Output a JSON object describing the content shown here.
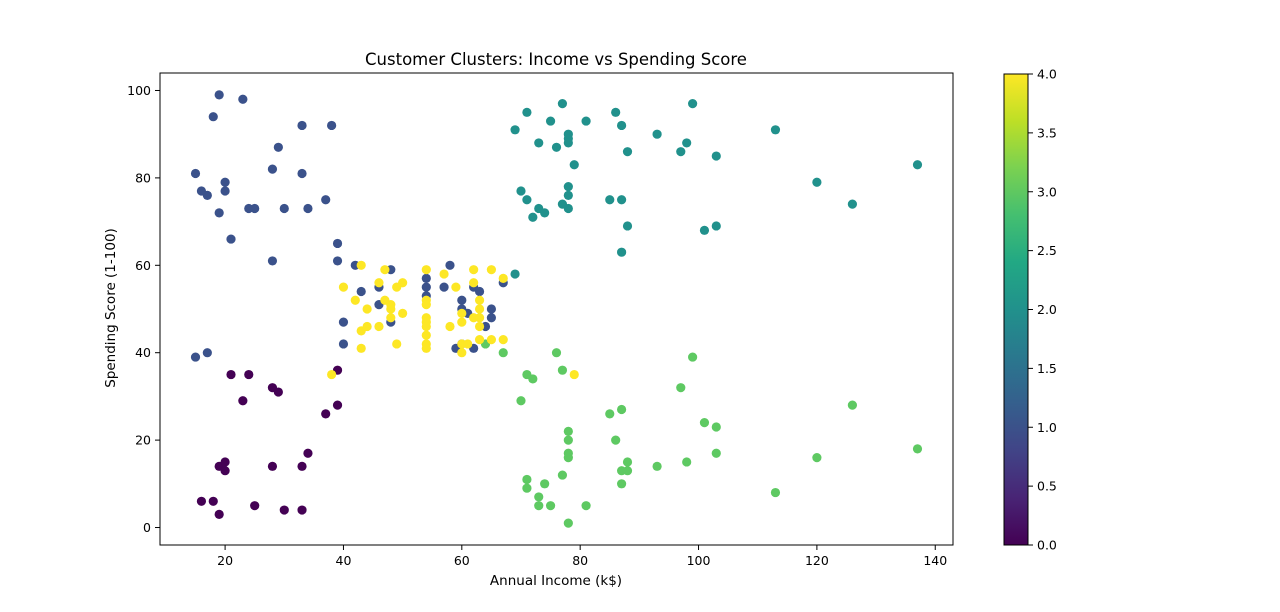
{
  "chart_data": {
    "type": "scatter",
    "title": "Customer Clusters: Income vs Spending Score",
    "xlabel": "Annual Income (k$)",
    "ylabel": "Spending Score (1-100)",
    "xlim": [
      9,
      143
    ],
    "ylim": [
      -4,
      104
    ],
    "xticks": [
      20,
      40,
      60,
      80,
      100,
      120,
      140
    ],
    "yticks": [
      0,
      20,
      40,
      60,
      80,
      100
    ],
    "grid": false,
    "colormap": "viridis",
    "colorbar": {
      "range": [
        0,
        4
      ],
      "ticks": [
        "0.0",
        "0.5",
        "1.0",
        "1.5",
        "2.0",
        "2.5",
        "3.0",
        "3.5",
        "4.0"
      ],
      "colors": [
        "#440154",
        "#482475",
        "#414487",
        "#355f8d",
        "#2a788e",
        "#21918c",
        "#22a884",
        "#44bf70",
        "#7ad151",
        "#bddf26",
        "#fde725"
      ]
    },
    "cluster_colors": {
      "0": "#440154",
      "1": "#3b528b",
      "2": "#21918c",
      "3": "#5ec962",
      "4": "#fde725"
    },
    "points": [
      {
        "x": 16,
        "y": 6,
        "c": 0
      },
      {
        "x": 18,
        "y": 6,
        "c": 0
      },
      {
        "x": 19,
        "y": 3,
        "c": 0
      },
      {
        "x": 19,
        "y": 14,
        "c": 0
      },
      {
        "x": 20,
        "y": 13,
        "c": 0
      },
      {
        "x": 20,
        "y": 15,
        "c": 0
      },
      {
        "x": 21,
        "y": 35,
        "c": 0
      },
      {
        "x": 23,
        "y": 29,
        "c": 0
      },
      {
        "x": 24,
        "y": 35,
        "c": 0
      },
      {
        "x": 25,
        "y": 5,
        "c": 0
      },
      {
        "x": 28,
        "y": 14,
        "c": 0
      },
      {
        "x": 28,
        "y": 32,
        "c": 0
      },
      {
        "x": 29,
        "y": 31,
        "c": 0
      },
      {
        "x": 30,
        "y": 4,
        "c": 0
      },
      {
        "x": 33,
        "y": 4,
        "c": 0
      },
      {
        "x": 33,
        "y": 14,
        "c": 0
      },
      {
        "x": 34,
        "y": 17,
        "c": 0
      },
      {
        "x": 37,
        "y": 26,
        "c": 0
      },
      {
        "x": 39,
        "y": 28,
        "c": 0
      },
      {
        "x": 39,
        "y": 36,
        "c": 0
      },
      {
        "x": 15,
        "y": 39,
        "c": 1
      },
      {
        "x": 15,
        "y": 81,
        "c": 1
      },
      {
        "x": 16,
        "y": 77,
        "c": 1
      },
      {
        "x": 17,
        "y": 40,
        "c": 1
      },
      {
        "x": 17,
        "y": 76,
        "c": 1
      },
      {
        "x": 18,
        "y": 94,
        "c": 1
      },
      {
        "x": 19,
        "y": 72,
        "c": 1
      },
      {
        "x": 19,
        "y": 99,
        "c": 1
      },
      {
        "x": 20,
        "y": 77,
        "c": 1
      },
      {
        "x": 20,
        "y": 79,
        "c": 1
      },
      {
        "x": 21,
        "y": 66,
        "c": 1
      },
      {
        "x": 23,
        "y": 98,
        "c": 1
      },
      {
        "x": 24,
        "y": 73,
        "c": 1
      },
      {
        "x": 25,
        "y": 73,
        "c": 1
      },
      {
        "x": 28,
        "y": 61,
        "c": 1
      },
      {
        "x": 28,
        "y": 82,
        "c": 1
      },
      {
        "x": 29,
        "y": 87,
        "c": 1
      },
      {
        "x": 30,
        "y": 73,
        "c": 1
      },
      {
        "x": 33,
        "y": 81,
        "c": 1
      },
      {
        "x": 33,
        "y": 92,
        "c": 1
      },
      {
        "x": 34,
        "y": 73,
        "c": 1
      },
      {
        "x": 37,
        "y": 75,
        "c": 1
      },
      {
        "x": 38,
        "y": 92,
        "c": 1
      },
      {
        "x": 39,
        "y": 61,
        "c": 1
      },
      {
        "x": 39,
        "y": 65,
        "c": 1
      },
      {
        "x": 40,
        "y": 47,
        "c": 1
      },
      {
        "x": 40,
        "y": 42,
        "c": 1
      },
      {
        "x": 42,
        "y": 60,
        "c": 1
      },
      {
        "x": 43,
        "y": 54,
        "c": 1
      },
      {
        "x": 46,
        "y": 51,
        "c": 1
      },
      {
        "x": 46,
        "y": 55,
        "c": 1
      },
      {
        "x": 48,
        "y": 47,
        "c": 1
      },
      {
        "x": 48,
        "y": 59,
        "c": 1
      },
      {
        "x": 54,
        "y": 57,
        "c": 1
      },
      {
        "x": 54,
        "y": 55,
        "c": 1
      },
      {
        "x": 54,
        "y": 53,
        "c": 1
      },
      {
        "x": 57,
        "y": 55,
        "c": 1
      },
      {
        "x": 58,
        "y": 60,
        "c": 1
      },
      {
        "x": 59,
        "y": 41,
        "c": 1
      },
      {
        "x": 60,
        "y": 52,
        "c": 1
      },
      {
        "x": 60,
        "y": 50,
        "c": 1
      },
      {
        "x": 60,
        "y": 42,
        "c": 1
      },
      {
        "x": 61,
        "y": 49,
        "c": 1
      },
      {
        "x": 62,
        "y": 55,
        "c": 1
      },
      {
        "x": 62,
        "y": 41,
        "c": 1
      },
      {
        "x": 63,
        "y": 54,
        "c": 1
      },
      {
        "x": 64,
        "y": 46,
        "c": 1
      },
      {
        "x": 65,
        "y": 50,
        "c": 1
      },
      {
        "x": 65,
        "y": 48,
        "c": 1
      },
      {
        "x": 67,
        "y": 56,
        "c": 1
      },
      {
        "x": 69,
        "y": 58,
        "c": 2
      },
      {
        "x": 69,
        "y": 91,
        "c": 2
      },
      {
        "x": 70,
        "y": 77,
        "c": 2
      },
      {
        "x": 71,
        "y": 95,
        "c": 2
      },
      {
        "x": 71,
        "y": 75,
        "c": 2
      },
      {
        "x": 72,
        "y": 71,
        "c": 2
      },
      {
        "x": 73,
        "y": 88,
        "c": 2
      },
      {
        "x": 73,
        "y": 73,
        "c": 2
      },
      {
        "x": 74,
        "y": 72,
        "c": 2
      },
      {
        "x": 75,
        "y": 93,
        "c": 2
      },
      {
        "x": 76,
        "y": 87,
        "c": 2
      },
      {
        "x": 77,
        "y": 97,
        "c": 2
      },
      {
        "x": 77,
        "y": 74,
        "c": 2
      },
      {
        "x": 78,
        "y": 90,
        "c": 2
      },
      {
        "x": 78,
        "y": 89,
        "c": 2
      },
      {
        "x": 78,
        "y": 88,
        "c": 2
      },
      {
        "x": 78,
        "y": 78,
        "c": 2
      },
      {
        "x": 78,
        "y": 76,
        "c": 2
      },
      {
        "x": 78,
        "y": 73,
        "c": 2
      },
      {
        "x": 79,
        "y": 83,
        "c": 2
      },
      {
        "x": 81,
        "y": 93,
        "c": 2
      },
      {
        "x": 85,
        "y": 75,
        "c": 2
      },
      {
        "x": 86,
        "y": 95,
        "c": 2
      },
      {
        "x": 87,
        "y": 63,
        "c": 2
      },
      {
        "x": 87,
        "y": 75,
        "c": 2
      },
      {
        "x": 87,
        "y": 92,
        "c": 2
      },
      {
        "x": 88,
        "y": 86,
        "c": 2
      },
      {
        "x": 88,
        "y": 69,
        "c": 2
      },
      {
        "x": 93,
        "y": 90,
        "c": 2
      },
      {
        "x": 97,
        "y": 86,
        "c": 2
      },
      {
        "x": 98,
        "y": 88,
        "c": 2
      },
      {
        "x": 99,
        "y": 97,
        "c": 2
      },
      {
        "x": 101,
        "y": 68,
        "c": 2
      },
      {
        "x": 103,
        "y": 85,
        "c": 2
      },
      {
        "x": 103,
        "y": 69,
        "c": 2
      },
      {
        "x": 113,
        "y": 91,
        "c": 2
      },
      {
        "x": 120,
        "y": 79,
        "c": 2
      },
      {
        "x": 126,
        "y": 74,
        "c": 2
      },
      {
        "x": 137,
        "y": 83,
        "c": 2
      },
      {
        "x": 64,
        "y": 42,
        "c": 3
      },
      {
        "x": 67,
        "y": 40,
        "c": 3
      },
      {
        "x": 70,
        "y": 29,
        "c": 3
      },
      {
        "x": 71,
        "y": 35,
        "c": 3
      },
      {
        "x": 71,
        "y": 11,
        "c": 3
      },
      {
        "x": 71,
        "y": 9,
        "c": 3
      },
      {
        "x": 72,
        "y": 34,
        "c": 3
      },
      {
        "x": 73,
        "y": 5,
        "c": 3
      },
      {
        "x": 73,
        "y": 7,
        "c": 3
      },
      {
        "x": 74,
        "y": 10,
        "c": 3
      },
      {
        "x": 75,
        "y": 5,
        "c": 3
      },
      {
        "x": 76,
        "y": 40,
        "c": 3
      },
      {
        "x": 77,
        "y": 12,
        "c": 3
      },
      {
        "x": 77,
        "y": 36,
        "c": 3
      },
      {
        "x": 78,
        "y": 22,
        "c": 3
      },
      {
        "x": 78,
        "y": 20,
        "c": 3
      },
      {
        "x": 78,
        "y": 17,
        "c": 3
      },
      {
        "x": 78,
        "y": 16,
        "c": 3
      },
      {
        "x": 78,
        "y": 1,
        "c": 3
      },
      {
        "x": 81,
        "y": 5,
        "c": 3
      },
      {
        "x": 85,
        "y": 26,
        "c": 3
      },
      {
        "x": 86,
        "y": 20,
        "c": 3
      },
      {
        "x": 87,
        "y": 27,
        "c": 3
      },
      {
        "x": 87,
        "y": 13,
        "c": 3
      },
      {
        "x": 87,
        "y": 10,
        "c": 3
      },
      {
        "x": 88,
        "y": 15,
        "c": 3
      },
      {
        "x": 88,
        "y": 13,
        "c": 3
      },
      {
        "x": 93,
        "y": 14,
        "c": 3
      },
      {
        "x": 97,
        "y": 32,
        "c": 3
      },
      {
        "x": 98,
        "y": 15,
        "c": 3
      },
      {
        "x": 99,
        "y": 39,
        "c": 3
      },
      {
        "x": 101,
        "y": 24,
        "c": 3
      },
      {
        "x": 103,
        "y": 23,
        "c": 3
      },
      {
        "x": 103,
        "y": 17,
        "c": 3
      },
      {
        "x": 113,
        "y": 8,
        "c": 3
      },
      {
        "x": 120,
        "y": 16,
        "c": 3
      },
      {
        "x": 126,
        "y": 28,
        "c": 3
      },
      {
        "x": 137,
        "y": 18,
        "c": 3
      },
      {
        "x": 38,
        "y": 35,
        "c": 4
      },
      {
        "x": 40,
        "y": 55,
        "c": 4
      },
      {
        "x": 42,
        "y": 52,
        "c": 4
      },
      {
        "x": 43,
        "y": 60,
        "c": 4
      },
      {
        "x": 43,
        "y": 45,
        "c": 4
      },
      {
        "x": 43,
        "y": 41,
        "c": 4
      },
      {
        "x": 44,
        "y": 50,
        "c": 4
      },
      {
        "x": 44,
        "y": 46,
        "c": 4
      },
      {
        "x": 46,
        "y": 56,
        "c": 4
      },
      {
        "x": 46,
        "y": 46,
        "c": 4
      },
      {
        "x": 47,
        "y": 59,
        "c": 4
      },
      {
        "x": 47,
        "y": 52,
        "c": 4
      },
      {
        "x": 48,
        "y": 51,
        "c": 4
      },
      {
        "x": 48,
        "y": 50,
        "c": 4
      },
      {
        "x": 48,
        "y": 48,
        "c": 4
      },
      {
        "x": 49,
        "y": 55,
        "c": 4
      },
      {
        "x": 49,
        "y": 42,
        "c": 4
      },
      {
        "x": 50,
        "y": 56,
        "c": 4
      },
      {
        "x": 50,
        "y": 49,
        "c": 4
      },
      {
        "x": 54,
        "y": 59,
        "c": 4
      },
      {
        "x": 54,
        "y": 52,
        "c": 4
      },
      {
        "x": 54,
        "y": 51,
        "c": 4
      },
      {
        "x": 54,
        "y": 48,
        "c": 4
      },
      {
        "x": 54,
        "y": 47,
        "c": 4
      },
      {
        "x": 54,
        "y": 46,
        "c": 4
      },
      {
        "x": 54,
        "y": 44,
        "c": 4
      },
      {
        "x": 54,
        "y": 42,
        "c": 4
      },
      {
        "x": 54,
        "y": 41,
        "c": 4
      },
      {
        "x": 57,
        "y": 58,
        "c": 4
      },
      {
        "x": 58,
        "y": 46,
        "c": 4
      },
      {
        "x": 59,
        "y": 55,
        "c": 4
      },
      {
        "x": 60,
        "y": 49,
        "c": 4
      },
      {
        "x": 60,
        "y": 47,
        "c": 4
      },
      {
        "x": 60,
        "y": 42,
        "c": 4
      },
      {
        "x": 60,
        "y": 40,
        "c": 4
      },
      {
        "x": 61,
        "y": 42,
        "c": 4
      },
      {
        "x": 62,
        "y": 59,
        "c": 4
      },
      {
        "x": 62,
        "y": 56,
        "c": 4
      },
      {
        "x": 62,
        "y": 48,
        "c": 4
      },
      {
        "x": 63,
        "y": 52,
        "c": 4
      },
      {
        "x": 63,
        "y": 50,
        "c": 4
      },
      {
        "x": 63,
        "y": 48,
        "c": 4
      },
      {
        "x": 63,
        "y": 46,
        "c": 4
      },
      {
        "x": 63,
        "y": 43,
        "c": 4
      },
      {
        "x": 65,
        "y": 59,
        "c": 4
      },
      {
        "x": 65,
        "y": 43,
        "c": 4
      },
      {
        "x": 67,
        "y": 57,
        "c": 4
      },
      {
        "x": 67,
        "y": 43,
        "c": 4
      },
      {
        "x": 79,
        "y": 35,
        "c": 4
      }
    ]
  }
}
